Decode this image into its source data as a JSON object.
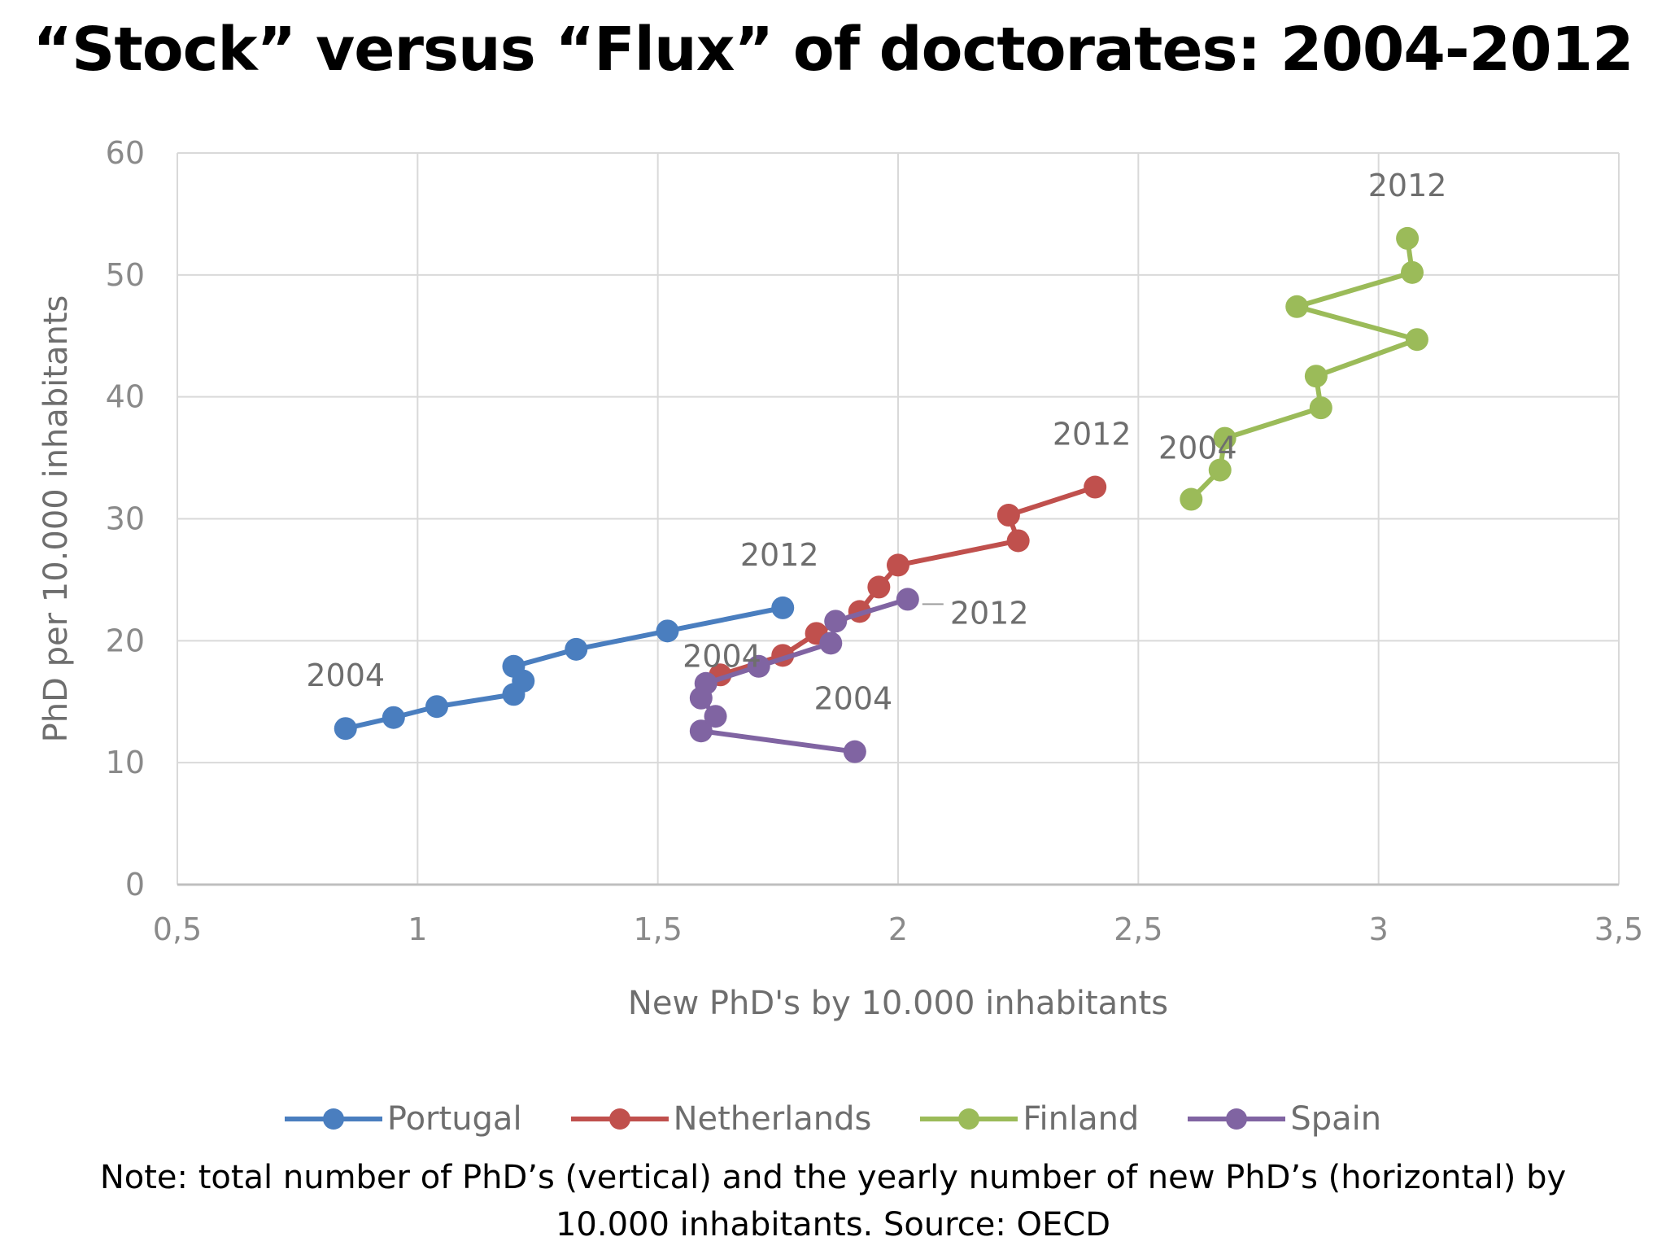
{
  "title": "“Stock” versus “Flux” of doctorates: 2004-2012",
  "note": "Note: total number of PhD’s (vertical) and the yearly number of new PhD’s (horizontal) by 10.000 inhabitants. Source: OECD",
  "chart_data": {
    "type": "line",
    "xlabel": "New PhD's by 10.000 inhabitants",
    "ylabel": "PhD per 10.000 inhabitants",
    "xlim": [
      0.5,
      3.5
    ],
    "ylim": [
      0,
      60
    ],
    "xticks": [
      "0,5",
      "1",
      "1,5",
      "2",
      "2,5",
      "3",
      "3,5"
    ],
    "yticks": [
      "0",
      "10",
      "20",
      "30",
      "40",
      "50",
      "60"
    ],
    "grid": true,
    "legend_position": "bottom",
    "series": [
      {
        "name": "Portugal",
        "color": "#4a7ebf",
        "points": [
          [
            0.85,
            12.8
          ],
          [
            0.95,
            13.7
          ],
          [
            1.04,
            14.6
          ],
          [
            1.2,
            15.6
          ],
          [
            1.22,
            16.7
          ],
          [
            1.2,
            17.9
          ],
          [
            1.33,
            19.3
          ],
          [
            1.52,
            20.8
          ],
          [
            1.76,
            22.7
          ]
        ]
      },
      {
        "name": "Netherlands",
        "color": "#c0504d",
        "points": [
          [
            1.63,
            17.2
          ],
          [
            1.76,
            18.8
          ],
          [
            1.83,
            20.6
          ],
          [
            1.92,
            22.4
          ],
          [
            1.96,
            24.4
          ],
          [
            2.0,
            26.2
          ],
          [
            2.25,
            28.2
          ],
          [
            2.23,
            30.3
          ],
          [
            2.41,
            32.6
          ]
        ]
      },
      {
        "name": "Finland",
        "color": "#9bbb59",
        "points": [
          [
            2.61,
            31.6
          ],
          [
            2.67,
            34.0
          ],
          [
            2.68,
            36.6
          ],
          [
            2.88,
            39.1
          ],
          [
            2.87,
            41.7
          ],
          [
            3.08,
            44.7
          ],
          [
            2.83,
            47.4
          ],
          [
            3.07,
            50.2
          ],
          [
            3.06,
            53.0
          ]
        ]
      },
      {
        "name": "Spain",
        "color": "#8064a2",
        "points": [
          [
            1.91,
            10.9
          ],
          [
            1.59,
            12.6
          ],
          [
            1.62,
            13.8
          ],
          [
            1.59,
            15.3
          ],
          [
            1.6,
            16.5
          ],
          [
            1.71,
            17.9
          ],
          [
            1.86,
            19.8
          ],
          [
            1.87,
            21.6
          ],
          [
            2.02,
            23.4
          ]
        ]
      }
    ],
    "annotations": [
      {
        "text": "2004",
        "series": "Portugal",
        "year": 2004
      },
      {
        "text": "2012",
        "series": "Portugal",
        "year": 2012
      },
      {
        "text": "2004",
        "series": "Netherlands",
        "year": 2004
      },
      {
        "text": "2012",
        "series": "Netherlands",
        "year": 2012
      },
      {
        "text": "2004",
        "series": "Finland",
        "year": 2004
      },
      {
        "text": "2012",
        "series": "Finland",
        "year": 2012
      },
      {
        "text": "2004",
        "series": "Spain",
        "year": 2004
      },
      {
        "text": "2012",
        "series": "Spain",
        "year": 2012
      }
    ]
  }
}
